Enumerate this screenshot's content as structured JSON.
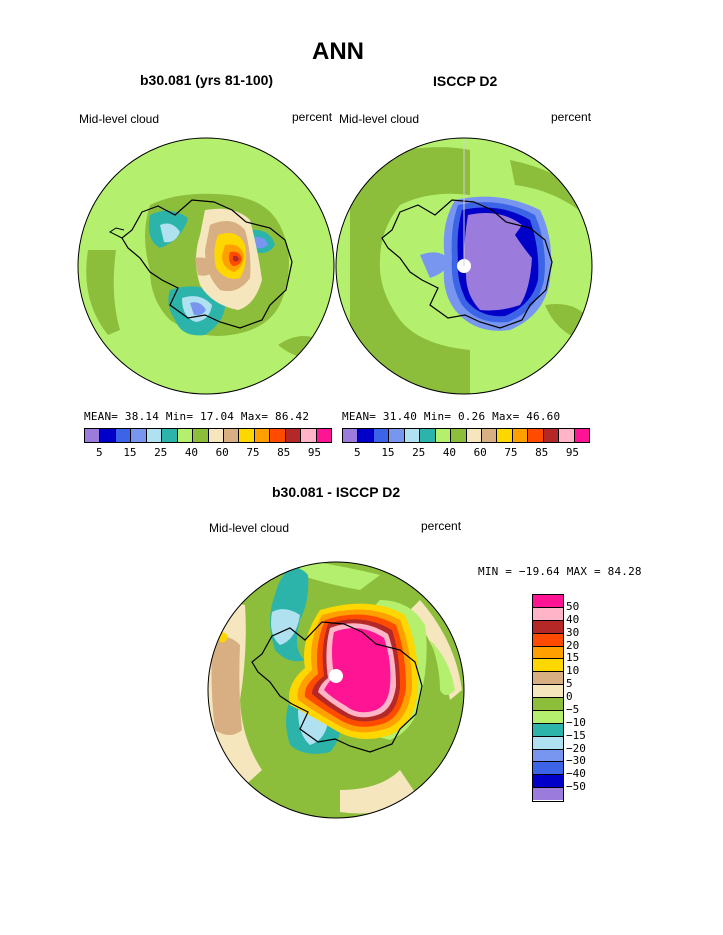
{
  "page_title": "ANN",
  "panels": {
    "model": {
      "title": "b30.081 (yrs 81-100)",
      "variable": "Mid-level cloud",
      "units": "percent",
      "stats": "MEAN=  38.14  Min=  17.04  Max=  86.42"
    },
    "obs": {
      "title": "ISCCP D2",
      "variable": "Mid-level cloud",
      "units": "percent",
      "stats": "MEAN=  31.40  Min=   0.26  Max=  46.60"
    },
    "diff": {
      "title": "b30.081 - ISCCP D2",
      "variable": "Mid-level cloud",
      "units": "percent",
      "stats": "MIN = −19.64 MAX =  84.28"
    }
  },
  "colorbar_abs": {
    "colors": [
      "#9b7bdc",
      "#0000c8",
      "#3c64e6",
      "#7896f0",
      "#afe1f0",
      "#2db4aa",
      "#b4f06e",
      "#8cbe3c",
      "#f5e6be",
      "#d7af82",
      "#ffd700",
      "#ffa000",
      "#ff4b00",
      "#b42828",
      "#ffb4c8",
      "#ff1493"
    ],
    "tick_labels": [
      "5",
      "15",
      "25",
      "40",
      "60",
      "75",
      "85",
      "95"
    ]
  },
  "colorbar_diff": {
    "colors": [
      "#ff1493",
      "#ffb4c8",
      "#b42828",
      "#ff4b00",
      "#ffa000",
      "#ffd700",
      "#d7af82",
      "#f5e6be",
      "#8cbe3c",
      "#b4f06e",
      "#2db4aa",
      "#afe1f0",
      "#7896f0",
      "#3c64e6",
      "#0000c8",
      "#9b7bdc"
    ],
    "tick_labels": [
      "50",
      "40",
      "30",
      "20",
      "15",
      "10",
      "5",
      "0",
      "−5",
      "−10",
      "−15",
      "−20",
      "−30",
      "−40",
      "−50"
    ]
  }
}
